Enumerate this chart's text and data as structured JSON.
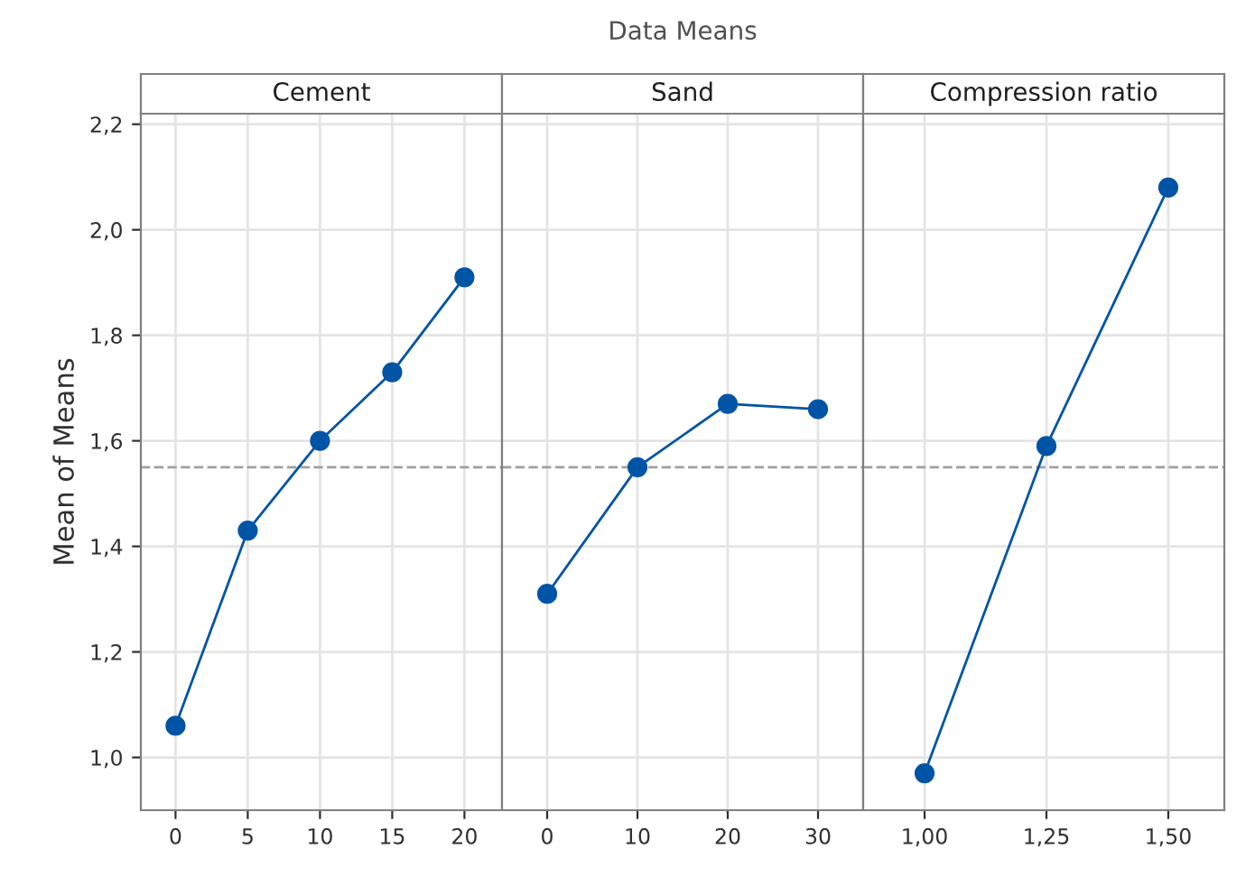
{
  "chart_data": [
    {
      "type": "line",
      "title": "Cement",
      "ylabel": "Mean of Means",
      "annotations": [
        "Data Means"
      ],
      "x": [
        0,
        5,
        10,
        15,
        20
      ],
      "series": [
        {
          "color": "#0054a6",
          "values": [
            1.06,
            1.43,
            1.6,
            1.73,
            1.91
          ]
        }
      ],
      "xlim": [
        -2.4,
        22.6
      ],
      "xticks": [
        0,
        5,
        10,
        15,
        20
      ],
      "ylim": [
        0.9,
        2.22
      ],
      "yticks": [
        {
          "value": 1.0,
          "label": "1,0"
        },
        {
          "value": 1.2,
          "label": "1,2"
        },
        {
          "value": 1.4,
          "label": "1,4"
        },
        {
          "value": 1.6,
          "label": "1,6"
        },
        {
          "value": 1.8,
          "label": "1,8"
        },
        {
          "value": 2.0,
          "label": "2,0"
        },
        {
          "value": 2.2,
          "label": "2,2"
        }
      ],
      "ref_lines": [
        {
          "axis": "y",
          "value": 1.55,
          "color": "#a0a0a0",
          "line_style": "dashed"
        }
      ],
      "grid": true,
      "marker": "circle",
      "line_style": "solid"
    },
    {
      "type": "line",
      "title": "Sand",
      "x": [
        0,
        10,
        20,
        30
      ],
      "series": [
        {
          "color": "#0054a6",
          "values": [
            1.31,
            1.55,
            1.67,
            1.66
          ]
        }
      ],
      "xlim": [
        -5,
        35
      ],
      "xticks": [
        0,
        10,
        20,
        30
      ],
      "ylim": [
        0.9,
        2.22
      ],
      "yticks": [
        1.0,
        1.2,
        1.4,
        1.6,
        1.8,
        2.0,
        2.2
      ],
      "ref_lines": [
        {
          "axis": "y",
          "value": 1.55,
          "color": "#a0a0a0",
          "line_style": "dashed"
        }
      ],
      "grid": true,
      "marker": "circle",
      "line_style": "solid",
      "tick_labels": "x"
    },
    {
      "type": "line",
      "title": "Compression ratio",
      "x": [
        1.0,
        1.25,
        1.5
      ],
      "series": [
        {
          "color": "#0054a6",
          "values": [
            0.97,
            1.59,
            2.08
          ]
        }
      ],
      "xlim": [
        0.874,
        1.615
      ],
      "xticks": [
        {
          "value": 1.0,
          "label": "1,00"
        },
        {
          "value": 1.25,
          "label": "1,25"
        },
        {
          "value": 1.5,
          "label": "1,50"
        }
      ],
      "ylim": [
        0.9,
        2.22
      ],
      "yticks": [
        1.0,
        1.2,
        1.4,
        1.6,
        1.8,
        2.0,
        2.2
      ],
      "ref_lines": [
        {
          "axis": "y",
          "value": 1.55,
          "color": "#a0a0a0",
          "line_style": "dashed"
        }
      ],
      "grid": true,
      "marker": "circle",
      "line_style": "solid",
      "tick_labels": "x"
    }
  ]
}
